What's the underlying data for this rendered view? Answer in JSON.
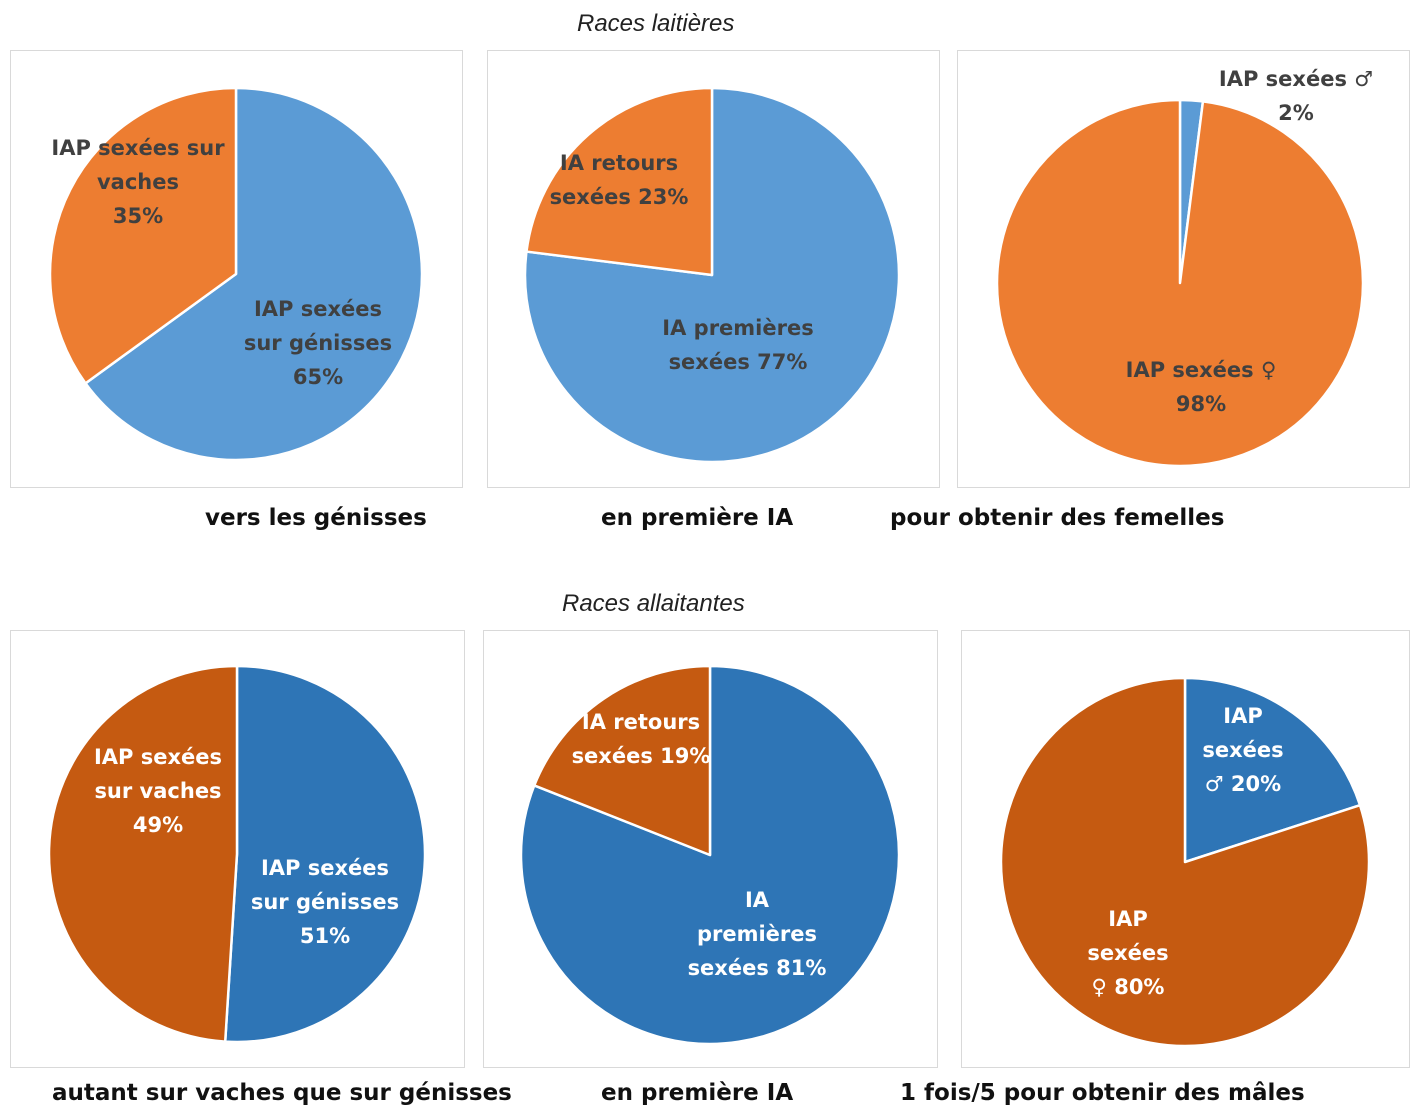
{
  "sections": {
    "dairy_title": "Races laitières",
    "beef_title": "Races allaitantes"
  },
  "captions": {
    "dairy": [
      "vers les génisses",
      "en première IA",
      "pour obtenir des femelles"
    ],
    "beef": [
      "autant sur vaches que sur génisses",
      "en première IA",
      "1 fois/5 pour obtenir des mâles"
    ]
  },
  "colors": {
    "dairy_blue": "#5b9bd5",
    "dairy_orange": "#ed7d31",
    "beef_blue": "#2e75b6",
    "beef_orange": "#c55a11",
    "dairy_label": "#404040",
    "beef_label": "#ffffff"
  },
  "chart_data": [
    {
      "type": "pie",
      "group": "Races laitières",
      "caption": "vers les génisses",
      "slices": [
        {
          "label": [
            "IAP sexées",
            "sur génisses",
            "65%"
          ],
          "value": 65,
          "color": "#5b9bd5"
        },
        {
          "label": [
            "IAP sexées sur",
            "vaches",
            "35%"
          ],
          "value": 35,
          "color": "#ed7d31"
        }
      ]
    },
    {
      "type": "pie",
      "group": "Races laitières",
      "caption": "en première IA",
      "slices": [
        {
          "label": [
            "IA premières",
            "sexées 77%"
          ],
          "value": 77,
          "color": "#5b9bd5"
        },
        {
          "label": [
            "IA retours",
            "sexées 23%"
          ],
          "value": 23,
          "color": "#ed7d31"
        }
      ]
    },
    {
      "type": "pie",
      "group": "Races laitières",
      "caption": "pour obtenir des femelles",
      "slices": [
        {
          "label": [
            "IAP sexées ♂",
            "2%"
          ],
          "value": 2,
          "color": "#5b9bd5"
        },
        {
          "label": [
            "IAP sexées ♀",
            "98%"
          ],
          "value": 98,
          "color": "#ed7d31"
        }
      ]
    },
    {
      "type": "pie",
      "group": "Races allaitantes",
      "caption": "autant sur vaches que sur génisses",
      "slices": [
        {
          "label": [
            "IAP sexées",
            "sur génisses",
            "51%"
          ],
          "value": 51,
          "color": "#2e75b6"
        },
        {
          "label": [
            "IAP sexées",
            "sur vaches",
            "49%"
          ],
          "value": 49,
          "color": "#c55a11"
        }
      ]
    },
    {
      "type": "pie",
      "group": "Races allaitantes",
      "caption": "en première IA",
      "slices": [
        {
          "label": [
            "IA",
            "premières",
            "sexées 81%"
          ],
          "value": 81,
          "color": "#2e75b6"
        },
        {
          "label": [
            "IA retours",
            "sexées 19%"
          ],
          "value": 19,
          "color": "#c55a11"
        }
      ]
    },
    {
      "type": "pie",
      "group": "Races allaitantes",
      "caption": "1 fois/5 pour obtenir des mâles",
      "slices": [
        {
          "label": [
            "IAP",
            "sexées",
            "♂ 20%"
          ],
          "value": 20,
          "color": "#2e75b6"
        },
        {
          "label": [
            "IAP",
            "sexées",
            "♀ 80%"
          ],
          "value": 80,
          "color": "#c55a11"
        }
      ]
    }
  ]
}
